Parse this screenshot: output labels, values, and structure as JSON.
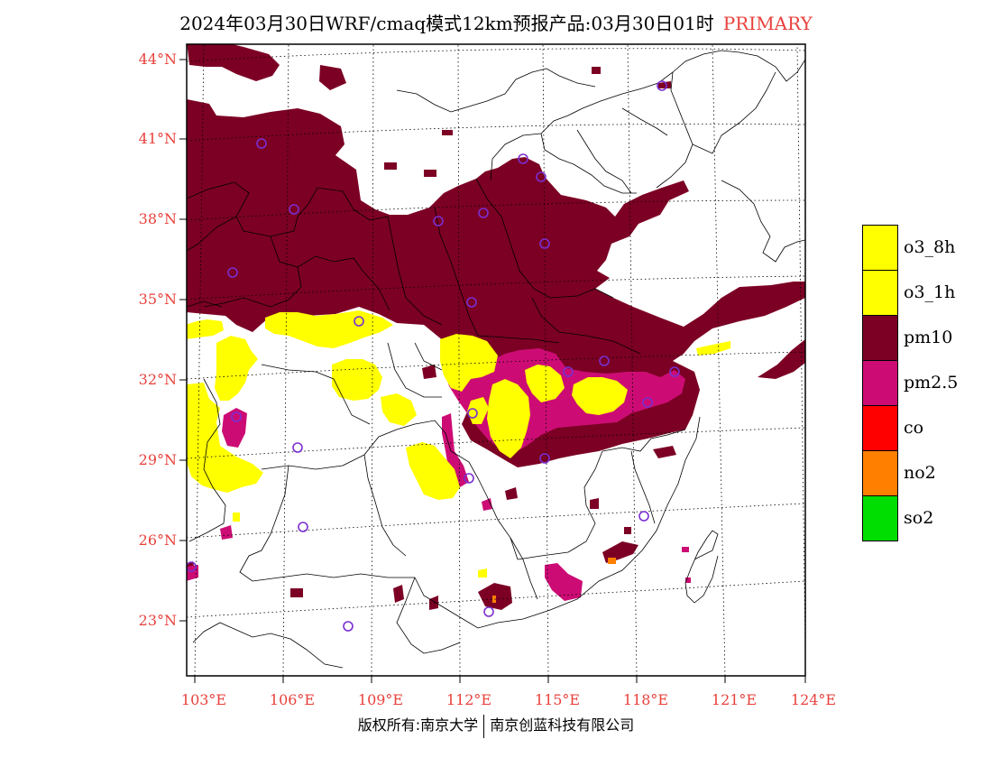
{
  "title": {
    "main": "2024年03月30日WRF/cmaq模式12km预报产品:03月30日01时",
    "tag": "PRIMARY"
  },
  "axes": {
    "lat_labels": [
      "44°N",
      "41°N",
      "38°N",
      "35°N",
      "32°N",
      "29°N",
      "26°N",
      "23°N"
    ],
    "lon_labels": [
      "103°E",
      "106°E",
      "109°E",
      "112°E",
      "115°E",
      "118°E",
      "121°E",
      "124°E"
    ]
  },
  "legend": [
    {
      "label": "o3_8h",
      "color": "#ffff00"
    },
    {
      "label": "o3_1h",
      "color": "#ffff00"
    },
    {
      "label": "pm10",
      "color": "#7c0024"
    },
    {
      "label": "pm2.5",
      "color": "#cc0c74"
    },
    {
      "label": "co",
      "color": "#ff0000"
    },
    {
      "label": "no2",
      "color": "#ff7f00"
    },
    {
      "label": "so2",
      "color": "#00dd00"
    }
  ],
  "credit": {
    "left": "版权所有:南京大学",
    "right": "南京创蓝科技有限公司"
  },
  "colors": {
    "pm10": "#7c0024",
    "pm25": "#cc0c74",
    "o3": "#ffff00",
    "no2": "#ff7f00",
    "axis_label": "#e8413c",
    "station_marker": "#7a2fd0"
  }
}
